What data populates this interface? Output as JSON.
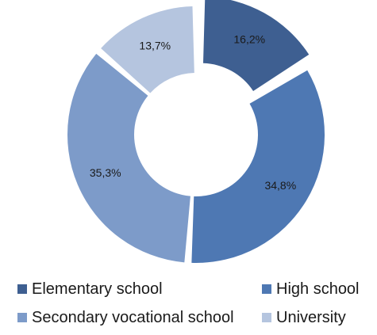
{
  "chart_data": {
    "type": "pie",
    "variant": "donut",
    "title": "",
    "slices": [
      {
        "label": "Elementary school",
        "value": 16.2,
        "display": "16,2%",
        "color": "#3e5f91",
        "exploded": true
      },
      {
        "label": "High school",
        "value": 34.8,
        "display": "34,8%",
        "color": "#4e78b3",
        "exploded": false
      },
      {
        "label": "Secondary vocational school",
        "value": 35.3,
        "display": "35,3%",
        "color": "#7d9bc9",
        "exploded": false
      },
      {
        "label": "University",
        "value": 13.7,
        "display": "13,7%",
        "color": "#b5c5df",
        "exploded": false
      }
    ],
    "legend": {
      "placement": "bottom",
      "items": [
        {
          "label": "Elementary school",
          "color": "#3e5f91"
        },
        {
          "label": "High school",
          "color": "#4e78b3"
        },
        {
          "label": "Secondary vocational school",
          "color": "#7d9bc9"
        },
        {
          "label": "University",
          "color": "#b5c5df"
        }
      ]
    }
  }
}
